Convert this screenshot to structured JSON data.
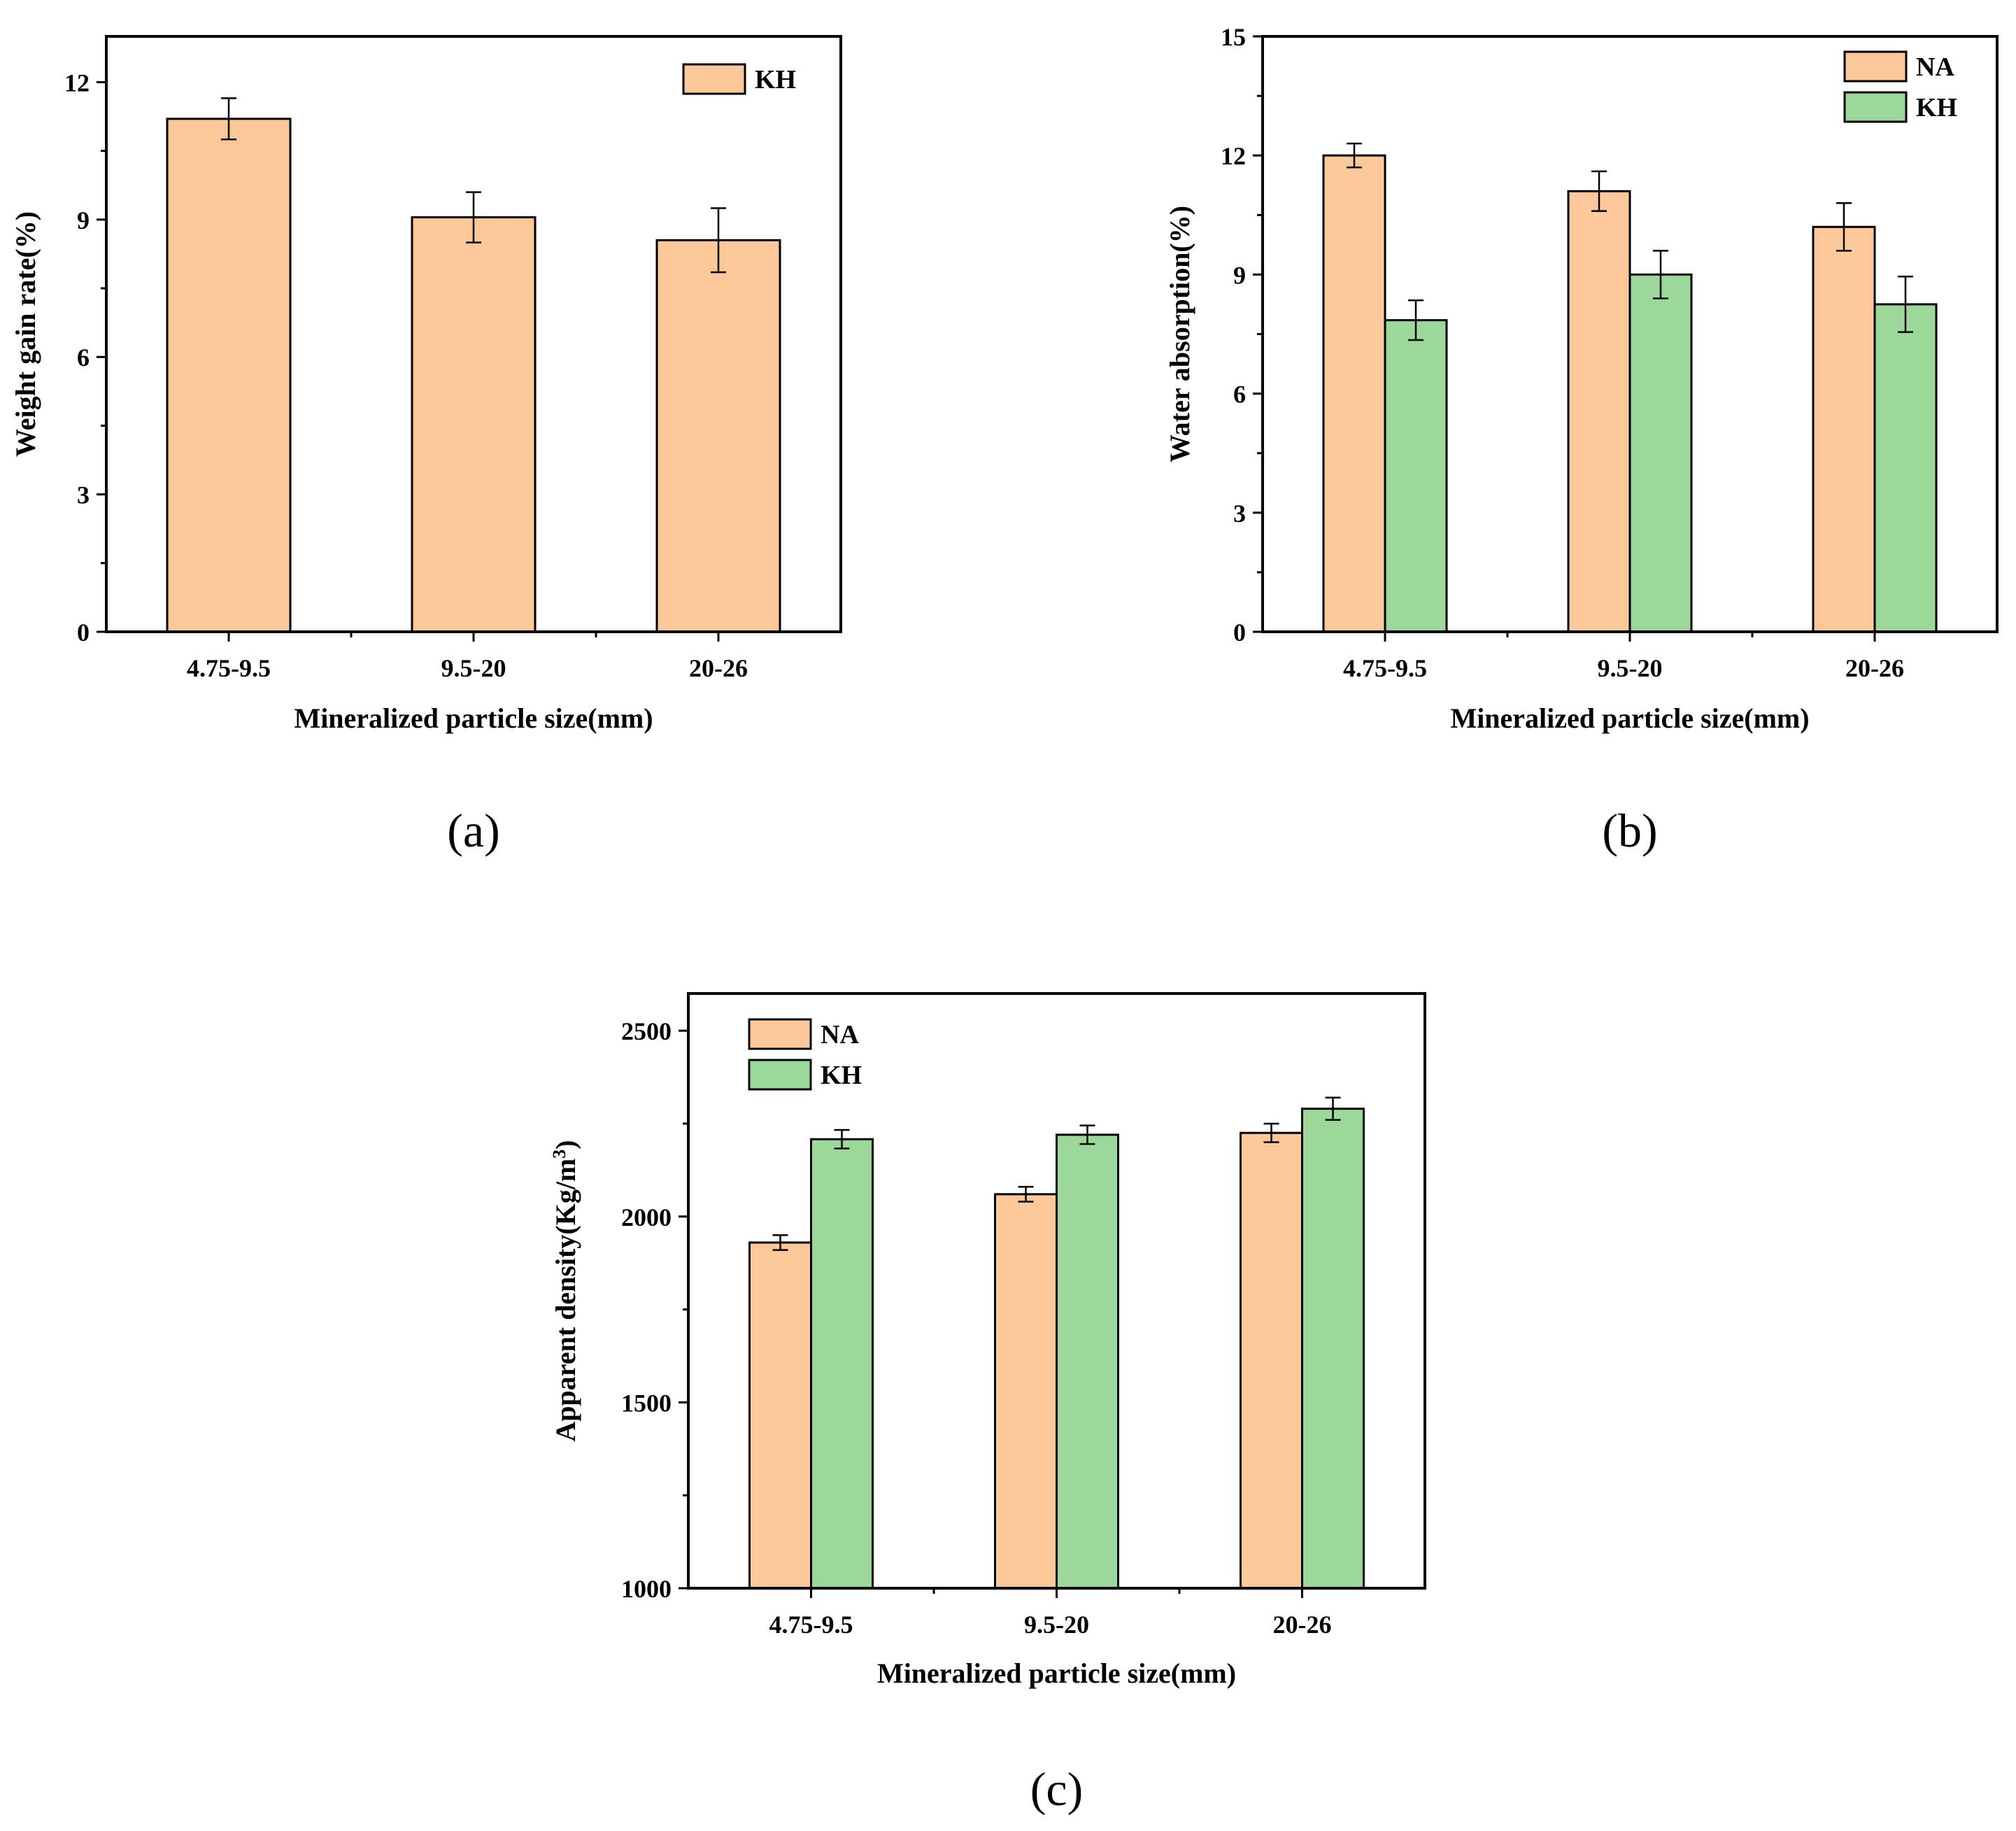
{
  "colors": {
    "NA": "#fcc899",
    "KH": "#9dd89b",
    "axis": "#000000"
  },
  "chart_data": [
    {
      "panel": "(a)",
      "type": "bar",
      "xlabel": "Mineralized particle size(mm)",
      "ylabel": "Weight gain rate(%)",
      "categories": [
        "4.75-9.5",
        "9.5-20",
        "20-26"
      ],
      "ylim": [
        0,
        13
      ],
      "yticks": [
        0,
        3,
        6,
        9,
        12
      ],
      "yticklabels": [
        "0",
        "3",
        "6",
        "9",
        "12"
      ],
      "legend_position": "top-right",
      "series": [
        {
          "name": "KH",
          "color_key": "NA",
          "values": [
            11.2,
            9.05,
            8.55
          ],
          "errors": [
            0.45,
            0.55,
            0.7
          ]
        }
      ]
    },
    {
      "panel": "(b)",
      "type": "bar",
      "xlabel": "Mineralized particle size(mm)",
      "ylabel": "Water absorption(%)",
      "categories": [
        "4.75-9.5",
        "9.5-20",
        "20-26"
      ],
      "ylim": [
        0,
        15
      ],
      "yticks": [
        0,
        3,
        6,
        9,
        12,
        15
      ],
      "yticklabels": [
        "0",
        "3",
        "6",
        "9",
        "12",
        "15"
      ],
      "legend_position": "top-right",
      "series": [
        {
          "name": "NA",
          "color_key": "NA",
          "values": [
            12.0,
            11.1,
            10.2
          ],
          "errors": [
            0.3,
            0.5,
            0.6
          ]
        },
        {
          "name": "KH",
          "color_key": "KH",
          "values": [
            7.85,
            9.0,
            8.25
          ],
          "errors": [
            0.5,
            0.6,
            0.7
          ]
        }
      ]
    },
    {
      "panel": "(c)",
      "type": "bar",
      "xlabel": "Mineralized particle size(mm)",
      "ylabel": "Apparent density(Kg/m",
      "ylabel_sup": "3",
      "ylabel_close": ")",
      "categories": [
        "4.75-9.5",
        "9.5-20",
        "20-26"
      ],
      "ylim": [
        1000,
        2600
      ],
      "yticks": [
        1000,
        1500,
        2000,
        2500
      ],
      "yticklabels": [
        "1000",
        "1500",
        "2000",
        "2500"
      ],
      "legend_position": "top-left",
      "series": [
        {
          "name": "NA",
          "color_key": "NA",
          "values": [
            1930,
            2060,
            2225
          ],
          "errors": [
            20,
            20,
            25
          ]
        },
        {
          "name": "KH",
          "color_key": "KH",
          "values": [
            2208,
            2220,
            2290
          ],
          "errors": [
            25,
            25,
            30
          ]
        }
      ]
    }
  ]
}
